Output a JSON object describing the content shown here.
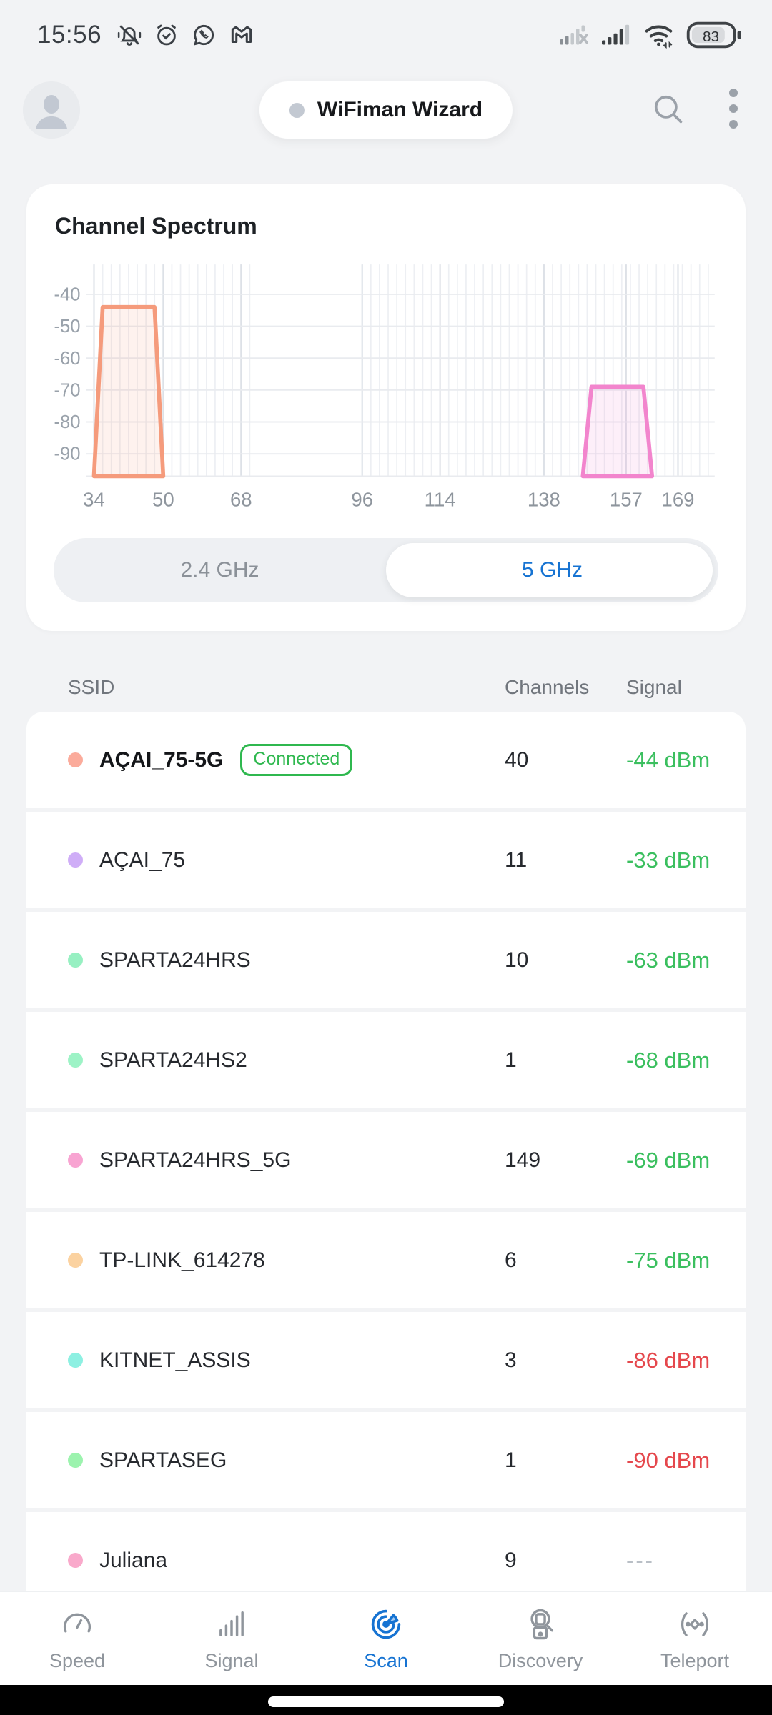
{
  "status_bar": {
    "time": "15:56",
    "battery": "83",
    "icons_left": [
      "notifications-off",
      "alarm-clock",
      "whatsapp",
      "gmail"
    ],
    "icons_right": [
      "cell-signal-no-sim",
      "cell-signal-full",
      "wifi-active",
      "battery"
    ]
  },
  "header": {
    "app_title": "WiFiman Wizard"
  },
  "spectrum": {
    "title": "Channel Spectrum",
    "tabs": [
      {
        "label": "2.4 GHz",
        "active": false
      },
      {
        "label": "5 GHz",
        "active": true
      }
    ]
  },
  "chart_data": {
    "type": "area",
    "title": "Channel Spectrum",
    "band": "5 GHz",
    "x_axis_unit": "channel",
    "x_ticks": [
      {
        "channel": "34",
        "mhz": 5170
      },
      {
        "channel": "50",
        "mhz": 5250
      },
      {
        "channel": "68",
        "mhz": 5340
      },
      {
        "channel": "96",
        "mhz": 5480
      },
      {
        "channel": "114",
        "mhz": 5570
      },
      {
        "channel": "138",
        "mhz": 5690
      },
      {
        "channel": "157",
        "mhz": 5785
      },
      {
        "channel": "169",
        "mhz": 5845
      }
    ],
    "y_ticks": [
      -40,
      -50,
      -60,
      -70,
      -80,
      -90
    ],
    "y_unit": "dBm",
    "ylim": [
      -97,
      -30
    ],
    "grid": true,
    "minor_grid_mhz_ranges": [
      [
        5170,
        5350
      ],
      [
        5480,
        5880
      ]
    ],
    "networks": [
      {
        "ssid": "AÇAI_75-5G",
        "signal_dbm": -44,
        "base_mhz": [
          5170,
          5250
        ],
        "top_mhz": [
          5180,
          5240
        ],
        "color": "#f59b7c"
      },
      {
        "ssid": "SPARTA24HRS_5G",
        "signal_dbm": -69,
        "base_mhz": [
          5735,
          5815
        ],
        "top_mhz": [
          5745,
          5805
        ],
        "color": "#f285cd"
      }
    ]
  },
  "table": {
    "columns": [
      "SSID",
      "Channels",
      "Signal"
    ],
    "rows": [
      {
        "ssid": "AÇAI_75-5G",
        "dot_color": "#fbab9b",
        "badge": "Connected",
        "channels": "40",
        "signal": "-44 dBm",
        "signal_state": "green",
        "connected": true
      },
      {
        "ssid": "AÇAI_75",
        "dot_color": "#cfadf7",
        "channels": "11",
        "signal": "-33 dBm",
        "signal_state": "green"
      },
      {
        "ssid": "SPARTA24HRS",
        "dot_color": "#97f0c2",
        "channels": "10",
        "signal": "-63 dBm",
        "signal_state": "green"
      },
      {
        "ssid": "SPARTA24HS2",
        "dot_color": "#9df3c6",
        "channels": "1",
        "signal": "-68 dBm",
        "signal_state": "green"
      },
      {
        "ssid": "SPARTA24HRS_5G",
        "dot_color": "#f8a4d2",
        "channels": "149",
        "signal": "-69 dBm",
        "signal_state": "green"
      },
      {
        "ssid": "TP-LINK_614278",
        "dot_color": "#fbd2a0",
        "channels": "6",
        "signal": "-75 dBm",
        "signal_state": "green"
      },
      {
        "ssid": "KITNET_ASSIS",
        "dot_color": "#8df0e2",
        "channels": "3",
        "signal": "-86 dBm",
        "signal_state": "red"
      },
      {
        "ssid": "SPARTASEG",
        "dot_color": "#9cf3ae",
        "channels": "1",
        "signal": "-90 dBm",
        "signal_state": "red"
      },
      {
        "ssid": "Juliana",
        "dot_color": "#f9a9cb",
        "channels": "9",
        "signal": "---",
        "signal_state": "muted"
      }
    ]
  },
  "nav": {
    "items": [
      {
        "label": "Speed",
        "icon": "speed-gauge",
        "active": false
      },
      {
        "label": "Signal",
        "icon": "signal-bars",
        "active": false
      },
      {
        "label": "Scan",
        "icon": "radar-scan",
        "active": true
      },
      {
        "label": "Discovery",
        "icon": "device-search",
        "active": false
      },
      {
        "label": "Teleport",
        "icon": "teleport-waves",
        "active": false
      }
    ]
  },
  "colors": {
    "accent_blue": "#1673d2",
    "signal_green": "#3bbf5f",
    "signal_red": "#e5484d",
    "signal_muted": "#b9bfc6",
    "badge_green": "#2fb84f",
    "page_bg": "#f2f3f5"
  }
}
